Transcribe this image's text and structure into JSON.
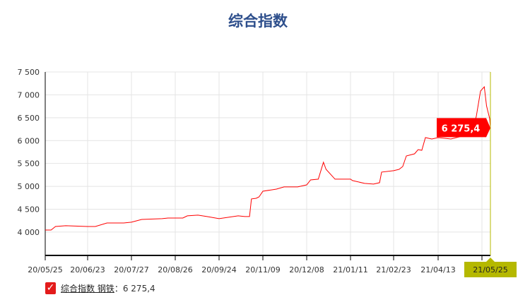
{
  "chart_data": {
    "type": "line",
    "title": "综合指数",
    "xlabel": "",
    "ylabel": "",
    "ylim": [
      3490,
      7500
    ],
    "yticks": [
      "4 000",
      "4 500",
      "5 000",
      "5 500",
      "6 000",
      "6 500",
      "7 000",
      "7 500"
    ],
    "ytick_values": [
      4000,
      4500,
      5000,
      5500,
      6000,
      6500,
      7000,
      7500
    ],
    "xticks": [
      "20/05/25",
      "20/06/23",
      "20/07/27",
      "20/08/26",
      "20/09/24",
      "20/11/09",
      "20/12/08",
      "21/01/11",
      "21/02/23",
      "21/04/13",
      ""
    ],
    "grid": true,
    "line_color": "#ff0000",
    "crosshair_color": "#b5b800",
    "highlight_x": "21/05/25",
    "tooltip": "6 275,4",
    "series": [
      {
        "name": "综合指数 钢铁",
        "points": [
          [
            "20/05/25",
            4046
          ],
          [
            "20/05/29",
            4046
          ],
          [
            "20/06/01",
            4123
          ],
          [
            "20/06/08",
            4139
          ],
          [
            "20/06/23",
            4123
          ],
          [
            "20/06/29",
            4123
          ],
          [
            "20/07/08",
            4200
          ],
          [
            "20/07/21",
            4200
          ],
          [
            "20/07/27",
            4216
          ],
          [
            "20/08/03",
            4277
          ],
          [
            "20/08/17",
            4293
          ],
          [
            "20/08/21",
            4308
          ],
          [
            "20/08/26",
            4308
          ],
          [
            "20/08/31",
            4308
          ],
          [
            "20/09/03",
            4355
          ],
          [
            "20/09/10",
            4370
          ],
          [
            "20/09/16",
            4340
          ],
          [
            "20/09/24",
            4293
          ],
          [
            "20/10/14",
            4355
          ],
          [
            "20/10/21",
            4340
          ],
          [
            "20/10/26",
            4340
          ],
          [
            "20/10/28",
            4725
          ],
          [
            "20/11/02",
            4740
          ],
          [
            "20/11/05",
            4770
          ],
          [
            "20/11/09",
            4894
          ],
          [
            "20/11/18",
            4940
          ],
          [
            "20/11/23",
            4987
          ],
          [
            "20/12/02",
            4987
          ],
          [
            "20/12/08",
            5033
          ],
          [
            "20/12/11",
            5140
          ],
          [
            "20/12/17",
            5157
          ],
          [
            "20/12/21",
            5526
          ],
          [
            "20/12/23",
            5372
          ],
          [
            "20/12/30",
            5157
          ],
          [
            "21/01/06",
            5157
          ],
          [
            "21/01/11",
            5157
          ],
          [
            "21/01/13",
            5126
          ],
          [
            "21/01/25",
            5064
          ],
          [
            "21/02/03",
            5049
          ],
          [
            "21/02/09",
            5080
          ],
          [
            "21/02/11",
            5311
          ],
          [
            "21/02/23",
            5342
          ],
          [
            "21/03/01",
            5372
          ],
          [
            "21/03/05",
            5434
          ],
          [
            "21/03/09",
            5665
          ],
          [
            "21/03/18",
            5711
          ],
          [
            "21/03/22",
            5804
          ],
          [
            "21/03/26",
            5788
          ],
          [
            "21/03/30",
            6066
          ],
          [
            "21/04/06",
            6035
          ],
          [
            "21/04/13",
            6066
          ],
          [
            "21/04/22",
            6035
          ],
          [
            "21/04/30",
            6097
          ],
          [
            "21/05/07",
            6190
          ],
          [
            "21/05/10",
            6530
          ],
          [
            "21/05/13",
            7084
          ],
          [
            "21/05/17",
            7176
          ],
          [
            "21/05/20",
            6760
          ],
          [
            "21/05/24",
            6482
          ],
          [
            "21/05/25",
            6275.4
          ]
        ]
      }
    ]
  },
  "legend": {
    "checked": true,
    "series_label": "综合指数 钢铁",
    "value": "6 275,4",
    "separator": "："
  }
}
